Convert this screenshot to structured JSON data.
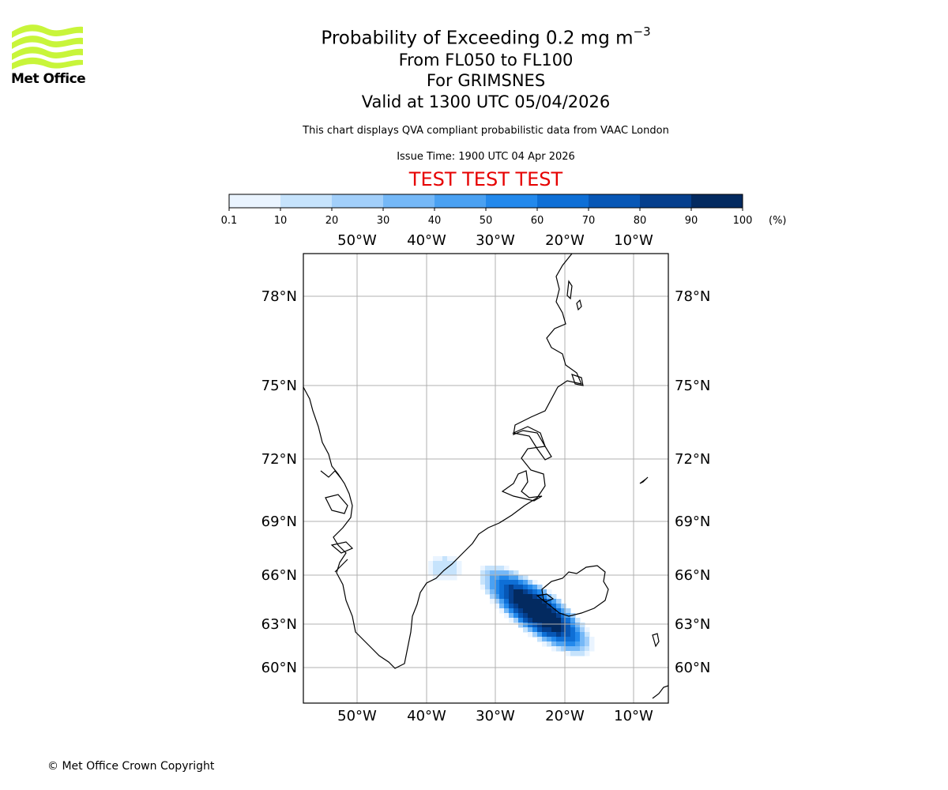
{
  "logo": {
    "text": "Met Office",
    "color": "#c8f53a"
  },
  "header": {
    "title_main": "Probability of Exceeding 0.2 mg m",
    "title_sup": "−3",
    "levels": "From FL050 to FL100",
    "location": "For GRIMSNES",
    "valid": "Valid at 1300 UTC 05/04/2026",
    "description": "This chart displays QVA compliant probabilistic data from VAAC London",
    "issue_time": "Issue Time: 1900 UTC 04 Apr 2026",
    "test_banner": "TEST TEST TEST"
  },
  "colorbar": {
    "ticks": [
      "0.1",
      "10",
      "20",
      "30",
      "40",
      "50",
      "60",
      "70",
      "80",
      "90",
      "100"
    ],
    "unit": "(%)",
    "colors": [
      "#eaf4ff",
      "#c6e3fc",
      "#a2cffa",
      "#75b8f7",
      "#4aa1f2",
      "#2389ec",
      "#0e6fd6",
      "#0757b6",
      "#053f8d",
      "#032a60"
    ]
  },
  "map": {
    "lon_labels": [
      "50°W",
      "40°W",
      "30°W",
      "20°W",
      "10°W"
    ],
    "lat_labels": [
      "78°N",
      "75°N",
      "72°N",
      "69°N",
      "66°N",
      "63°N",
      "60°N"
    ],
    "gridline_color": "#b0b0b0"
  },
  "footer": {
    "copyright": "© Met Office Crown Copyright"
  }
}
